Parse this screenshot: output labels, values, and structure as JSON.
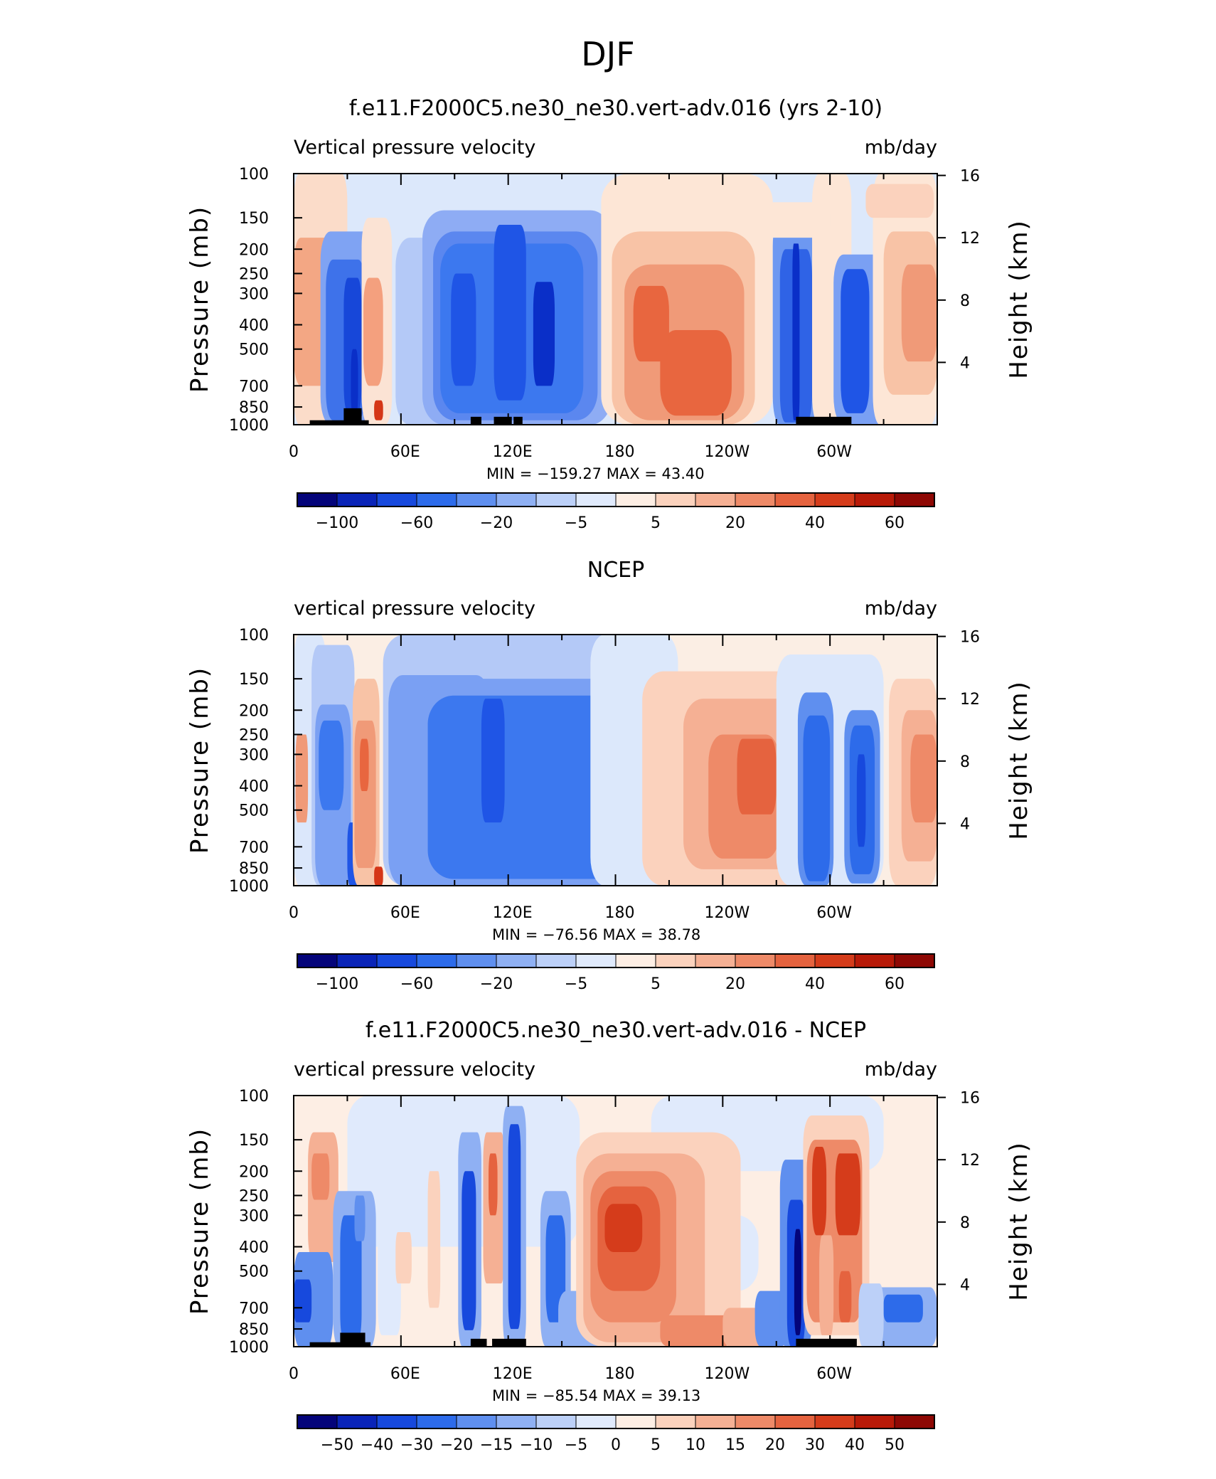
{
  "figure_title": "DJF",
  "colors": {
    "diverging12": [
      "#08088a",
      "#0a2fc8",
      "#1f55e6",
      "#3c78ef",
      "#7a9ff3",
      "#b4c9f7",
      "#dbe7fb",
      "#fde6d6",
      "#f8c3a6",
      "#f09a78",
      "#e8663f",
      "#d53617",
      "#a80f06"
    ],
    "diverging16": [
      "#04047a",
      "#0a24b8",
      "#1749dd",
      "#2d6bea",
      "#5f8fef",
      "#8fb0f3",
      "#bcd0f8",
      "#e0eafc",
      "#fdeee4",
      "#fbd2bd",
      "#f5b094",
      "#ee8a68",
      "#e5633f",
      "#d53c1b",
      "#b81a08",
      "#8e0804"
    ]
  },
  "panels": [
    {
      "title": "f.e11.F2000C5.ne30_ne30.vert-adv.016 (yrs 2-10)",
      "left_label": "Vertical pressure velocity",
      "right_label": "mb/day",
      "min_max": "MIN = −159.27   MAX =   43.40",
      "colorbar_labels": [
        "−100",
        "−60",
        "−20",
        "−5",
        "5",
        "20",
        "40",
        "60"
      ]
    },
    {
      "title": "NCEP",
      "left_label": "vertical pressure velocity",
      "right_label": "mb/day",
      "min_max": "MIN = −76.56   MAX =   38.78",
      "colorbar_labels": [
        "−100",
        "−60",
        "−20",
        "−5",
        "5",
        "20",
        "40",
        "60"
      ]
    },
    {
      "title": "f.e11.F2000C5.ne30_ne30.vert-adv.016 - NCEP",
      "left_label": "vertical pressure velocity",
      "right_label": "mb/day",
      "min_max": "MIN = −85.54   MAX =   39.13",
      "colorbar_labels": [
        "−50",
        "−40",
        "−30",
        "−20",
        "−15",
        "−10",
        "−5",
        "0",
        "5",
        "10",
        "15",
        "20",
        "30",
        "40",
        "50"
      ]
    }
  ],
  "chart_data": [
    {
      "type": "heatmap",
      "title": "f.e11.F2000C5.ne30_ne30.vert-adv.016 (yrs 2-10)",
      "xlabel": "",
      "ylabel": "Pressure (mb)",
      "y2label": "Height (km)",
      "x_ticks": [
        "0",
        "60E",
        "120E",
        "180",
        "120W",
        "60W"
      ],
      "y_ticks": [
        "100",
        "150",
        "200",
        "250",
        "300",
        "400",
        "500",
        "700",
        "850",
        "1000"
      ],
      "y2_ticks": [
        "16",
        "12",
        "8",
        "4"
      ],
      "xlim": [
        0,
        360
      ],
      "ylim": [
        1000,
        100
      ],
      "y_scale": "log",
      "units": "mb/day",
      "colorbar_levels": [
        "−100",
        "−60",
        "−20",
        "−5",
        "5",
        "20",
        "40",
        "60"
      ],
      "min": -159.27,
      "max": 43.4
    },
    {
      "type": "heatmap",
      "title": "NCEP",
      "xlabel": "",
      "ylabel": "Pressure (mb)",
      "y2label": "Height (km)",
      "x_ticks": [
        "0",
        "60E",
        "120E",
        "180",
        "120W",
        "60W"
      ],
      "y_ticks": [
        "100",
        "150",
        "200",
        "250",
        "300",
        "400",
        "500",
        "700",
        "850",
        "1000"
      ],
      "y2_ticks": [
        "16",
        "12",
        "8",
        "4"
      ],
      "xlim": [
        0,
        360
      ],
      "ylim": [
        1000,
        100
      ],
      "y_scale": "log",
      "units": "mb/day",
      "colorbar_levels": [
        "−100",
        "−60",
        "−20",
        "−5",
        "5",
        "20",
        "40",
        "60"
      ],
      "min": -76.56,
      "max": 38.78
    },
    {
      "type": "heatmap",
      "title": "f.e11.F2000C5.ne30_ne30.vert-adv.016 - NCEP",
      "xlabel": "",
      "ylabel": "Pressure (mb)",
      "y2label": "Height (km)",
      "x_ticks": [
        "0",
        "60E",
        "120E",
        "180",
        "120W",
        "60W"
      ],
      "y_ticks": [
        "100",
        "150",
        "200",
        "250",
        "300",
        "400",
        "500",
        "700",
        "850",
        "1000"
      ],
      "y2_ticks": [
        "16",
        "12",
        "8",
        "4"
      ],
      "xlim": [
        0,
        360
      ],
      "ylim": [
        1000,
        100
      ],
      "y_scale": "log",
      "units": "mb/day",
      "colorbar_levels": [
        "−50",
        "−40",
        "−30",
        "−20",
        "−15",
        "−10",
        "−5",
        "0",
        "5",
        "10",
        "15",
        "20",
        "30",
        "40",
        "50"
      ],
      "min": -85.54,
      "max": 39.13
    }
  ]
}
